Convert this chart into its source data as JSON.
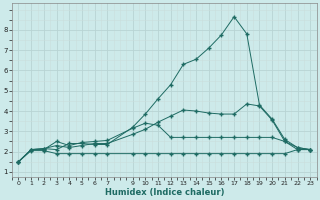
{
  "xlabel": "Humidex (Indice chaleur)",
  "bg_color": "#cdeaea",
  "grid_major_color": "#b8d4d4",
  "grid_minor_color": "#cadedc",
  "line_color": "#1e6b63",
  "xlim": [
    -0.5,
    23.5
  ],
  "ylim": [
    0.75,
    9.3
  ],
  "xticks": [
    0,
    1,
    2,
    3,
    4,
    5,
    6,
    7,
    9,
    10,
    11,
    12,
    13,
    14,
    15,
    16,
    17,
    18,
    19,
    20,
    21,
    22,
    23
  ],
  "yticks": [
    1,
    2,
    3,
    4,
    5,
    6,
    7,
    8
  ],
  "line1_x": [
    0,
    1,
    2,
    3,
    4,
    5,
    6,
    7,
    9,
    10,
    11,
    12,
    13,
    14,
    15,
    16,
    17,
    18,
    19,
    20,
    21,
    22,
    23
  ],
  "line1_y": [
    1.5,
    2.1,
    2.15,
    2.1,
    2.4,
    2.4,
    2.35,
    2.35,
    3.2,
    3.85,
    4.6,
    5.3,
    6.3,
    6.55,
    7.1,
    7.75,
    8.65,
    7.8,
    4.3,
    3.6,
    2.6,
    2.2,
    2.1
  ],
  "line2_x": [
    0,
    1,
    2,
    3,
    4,
    5,
    6,
    7,
    9,
    10,
    11,
    12,
    13,
    14,
    15,
    16,
    17,
    18,
    19,
    20,
    21,
    22,
    23
  ],
  "line2_y": [
    1.5,
    2.05,
    2.05,
    1.9,
    1.9,
    1.9,
    1.9,
    1.9,
    1.9,
    1.9,
    1.9,
    1.9,
    1.9,
    1.9,
    1.9,
    1.9,
    1.9,
    1.9,
    1.9,
    1.9,
    1.9,
    2.1,
    2.1
  ],
  "line3_x": [
    0,
    1,
    2,
    3,
    4,
    5,
    6,
    7,
    9,
    10,
    11,
    12,
    13,
    14,
    15,
    16,
    17,
    18,
    19,
    20,
    21,
    22,
    23
  ],
  "line3_y": [
    1.5,
    2.1,
    2.1,
    2.5,
    2.3,
    2.45,
    2.5,
    2.55,
    3.15,
    3.4,
    3.3,
    2.7,
    2.7,
    2.7,
    2.7,
    2.7,
    2.7,
    2.7,
    2.7,
    2.7,
    2.5,
    2.1,
    2.1
  ],
  "line4_x": [
    0,
    1,
    2,
    3,
    4,
    5,
    6,
    7,
    9,
    10,
    11,
    12,
    13,
    14,
    15,
    16,
    17,
    18,
    19,
    20,
    21,
    22,
    23
  ],
  "line4_y": [
    1.5,
    2.1,
    2.15,
    2.3,
    2.2,
    2.3,
    2.4,
    2.4,
    2.85,
    3.1,
    3.45,
    3.75,
    4.05,
    4.0,
    3.9,
    3.85,
    3.85,
    4.35,
    4.25,
    3.55,
    2.5,
    2.2,
    2.1
  ]
}
